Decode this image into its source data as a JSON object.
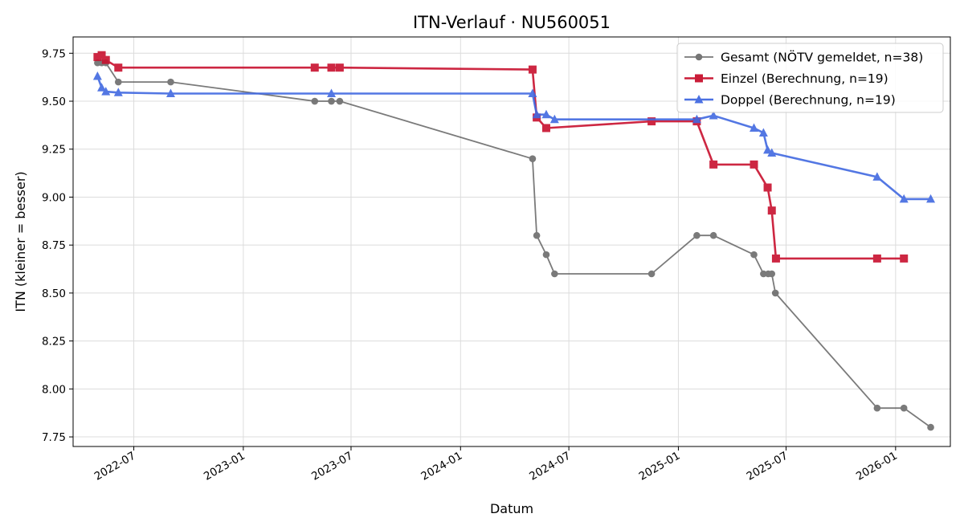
{
  "chart_data": {
    "type": "line",
    "title": "ITN-Verlauf · NU560051",
    "xlabel": "Datum",
    "ylabel": "ITN  (kleiner = besser)",
    "xlim": [
      "2022-03-21",
      "2026-04-03"
    ],
    "ylim": [
      7.7,
      9.835
    ],
    "y_ticks": [
      7.75,
      8.0,
      8.25,
      8.5,
      8.75,
      9.0,
      9.25,
      9.5,
      9.75
    ],
    "y_tick_labels": [
      "7.75",
      "8.00",
      "8.25",
      "8.50",
      "8.75",
      "9.00",
      "9.25",
      "9.50",
      "9.75"
    ],
    "x_ticks": [
      "2022-07-01",
      "2023-01-01",
      "2023-07-01",
      "2024-01-01",
      "2024-07-01",
      "2025-01-01",
      "2025-07-01",
      "2026-01-01"
    ],
    "x_tick_labels": [
      "2022-07",
      "2023-01",
      "2023-07",
      "2024-01",
      "2024-07",
      "2025-01",
      "2025-07",
      "2026-01"
    ],
    "grid": true,
    "legend_position": "top-right",
    "series": [
      {
        "name": "Gesamt (NÖTV gemeldet, n=38)",
        "color": "#555555",
        "marker": "circle",
        "points": [
          [
            "2022-05-01",
            9.7
          ],
          [
            "2022-05-08",
            9.7
          ],
          [
            "2022-05-15",
            9.7
          ],
          [
            "2022-06-05",
            9.6
          ],
          [
            "2022-09-01",
            9.6
          ],
          [
            "2023-05-01",
            9.5
          ],
          [
            "2023-05-29",
            9.5
          ],
          [
            "2023-06-12",
            9.5
          ],
          [
            "2024-05-01",
            9.2
          ],
          [
            "2024-05-08",
            8.8
          ],
          [
            "2024-05-24",
            8.7
          ],
          [
            "2024-06-07",
            8.6
          ],
          [
            "2024-11-17",
            8.6
          ],
          [
            "2025-02-01",
            8.8
          ],
          [
            "2025-02-29",
            8.8
          ],
          [
            "2025-05-08",
            8.7
          ],
          [
            "2025-05-24",
            8.6
          ],
          [
            "2025-06-01",
            8.6
          ],
          [
            "2025-06-07",
            8.6
          ],
          [
            "2025-06-13",
            8.5
          ],
          [
            "2025-12-01",
            7.9
          ],
          [
            "2026-01-15",
            7.9
          ],
          [
            "2026-03-01",
            7.8
          ]
        ]
      },
      {
        "name": "Einzel (Berechnung, n=19)",
        "color": "#c8102e",
        "marker": "square",
        "points": [
          [
            "2022-05-01",
            9.73
          ],
          [
            "2022-05-08",
            9.74
          ],
          [
            "2022-05-15",
            9.715
          ],
          [
            "2022-06-05",
            9.675
          ],
          [
            "2023-05-01",
            9.675
          ],
          [
            "2023-05-29",
            9.675
          ],
          [
            "2023-06-12",
            9.675
          ],
          [
            "2024-05-01",
            9.665
          ],
          [
            "2024-05-08",
            9.415
          ],
          [
            "2024-05-24",
            9.36
          ],
          [
            "2024-11-17",
            9.395
          ],
          [
            "2025-02-01",
            9.395
          ],
          [
            "2025-02-29",
            9.17
          ],
          [
            "2025-05-08",
            9.17
          ],
          [
            "2025-05-31",
            9.05
          ],
          [
            "2025-06-07",
            8.93
          ],
          [
            "2025-06-14",
            8.68
          ],
          [
            "2025-12-01",
            8.68
          ],
          [
            "2026-01-15",
            8.68
          ]
        ]
      },
      {
        "name": "Doppel (Berechnung, n=19)",
        "color": "#4169e1",
        "marker": "triangle",
        "points": [
          [
            "2022-05-01",
            9.63
          ],
          [
            "2022-05-08",
            9.57
          ],
          [
            "2022-05-15",
            9.55
          ],
          [
            "2022-06-05",
            9.545
          ],
          [
            "2022-09-01",
            9.54
          ],
          [
            "2023-05-29",
            9.54
          ],
          [
            "2024-05-01",
            9.54
          ],
          [
            "2024-05-08",
            9.43
          ],
          [
            "2024-05-24",
            9.43
          ],
          [
            "2024-06-07",
            9.405
          ],
          [
            "2025-02-01",
            9.405
          ],
          [
            "2025-02-29",
            9.425
          ],
          [
            "2025-05-08",
            9.36
          ],
          [
            "2025-05-24",
            9.335
          ],
          [
            "2025-05-31",
            9.245
          ],
          [
            "2025-06-07",
            9.23
          ],
          [
            "2025-12-01",
            9.105
          ],
          [
            "2026-01-15",
            8.99
          ],
          [
            "2026-03-01",
            8.99
          ]
        ]
      }
    ]
  }
}
